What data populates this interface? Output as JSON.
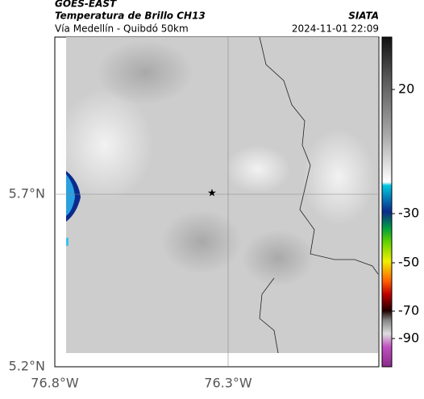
{
  "header": {
    "satellite": "GOES-EAST",
    "product": "Temperatura de Brillo CH13",
    "region": "Vía Medellín - Quibdó 50km",
    "source": "SIATA",
    "timestamp": "2024-11-01 22:09"
  },
  "map": {
    "lat_labels": [
      "5.7°N",
      "5.2°N"
    ],
    "lon_labels": [
      "76.8°W",
      "76.3°W"
    ]
  },
  "colorbar": {
    "labels": [
      "20",
      "-30",
      "-50",
      "-70",
      "-90"
    ]
  }
}
